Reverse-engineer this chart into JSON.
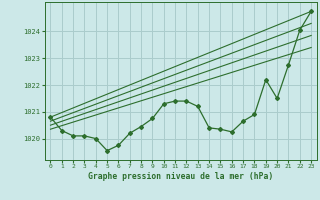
{
  "title": "Graphe pression niveau de la mer (hPa)",
  "bg_color": "#cce8e8",
  "grid_color": "#aacccc",
  "line_color": "#2d6e2d",
  "xlim": [
    -0.5,
    23.5
  ],
  "ylim": [
    1019.2,
    1025.1
  ],
  "yticks": [
    1020,
    1021,
    1022,
    1023,
    1024
  ],
  "xticks": [
    0,
    1,
    2,
    3,
    4,
    5,
    6,
    7,
    8,
    9,
    10,
    11,
    12,
    13,
    14,
    15,
    16,
    17,
    18,
    19,
    20,
    21,
    22,
    23
  ],
  "main_x": [
    0,
    1,
    2,
    3,
    4,
    5,
    6,
    7,
    8,
    9,
    10,
    11,
    12,
    13,
    14,
    15,
    16,
    17,
    18,
    19,
    20,
    21,
    22,
    23
  ],
  "main_y": [
    1020.8,
    1020.3,
    1020.1,
    1020.1,
    1020.0,
    1019.55,
    1019.75,
    1020.2,
    1020.45,
    1020.75,
    1021.3,
    1021.4,
    1021.4,
    1021.2,
    1020.4,
    1020.35,
    1020.25,
    1020.65,
    1020.9,
    1022.2,
    1021.5,
    1022.75,
    1024.05,
    1024.75
  ],
  "line2_x": [
    0,
    23
  ],
  "line2_y": [
    1020.8,
    1024.75
  ],
  "line3_x": [
    0,
    23
  ],
  "line3_y": [
    1020.65,
    1024.3
  ],
  "line4_x": [
    0,
    23
  ],
  "line4_y": [
    1020.5,
    1023.85
  ],
  "line5_x": [
    0,
    23
  ],
  "line5_y": [
    1020.35,
    1023.4
  ]
}
